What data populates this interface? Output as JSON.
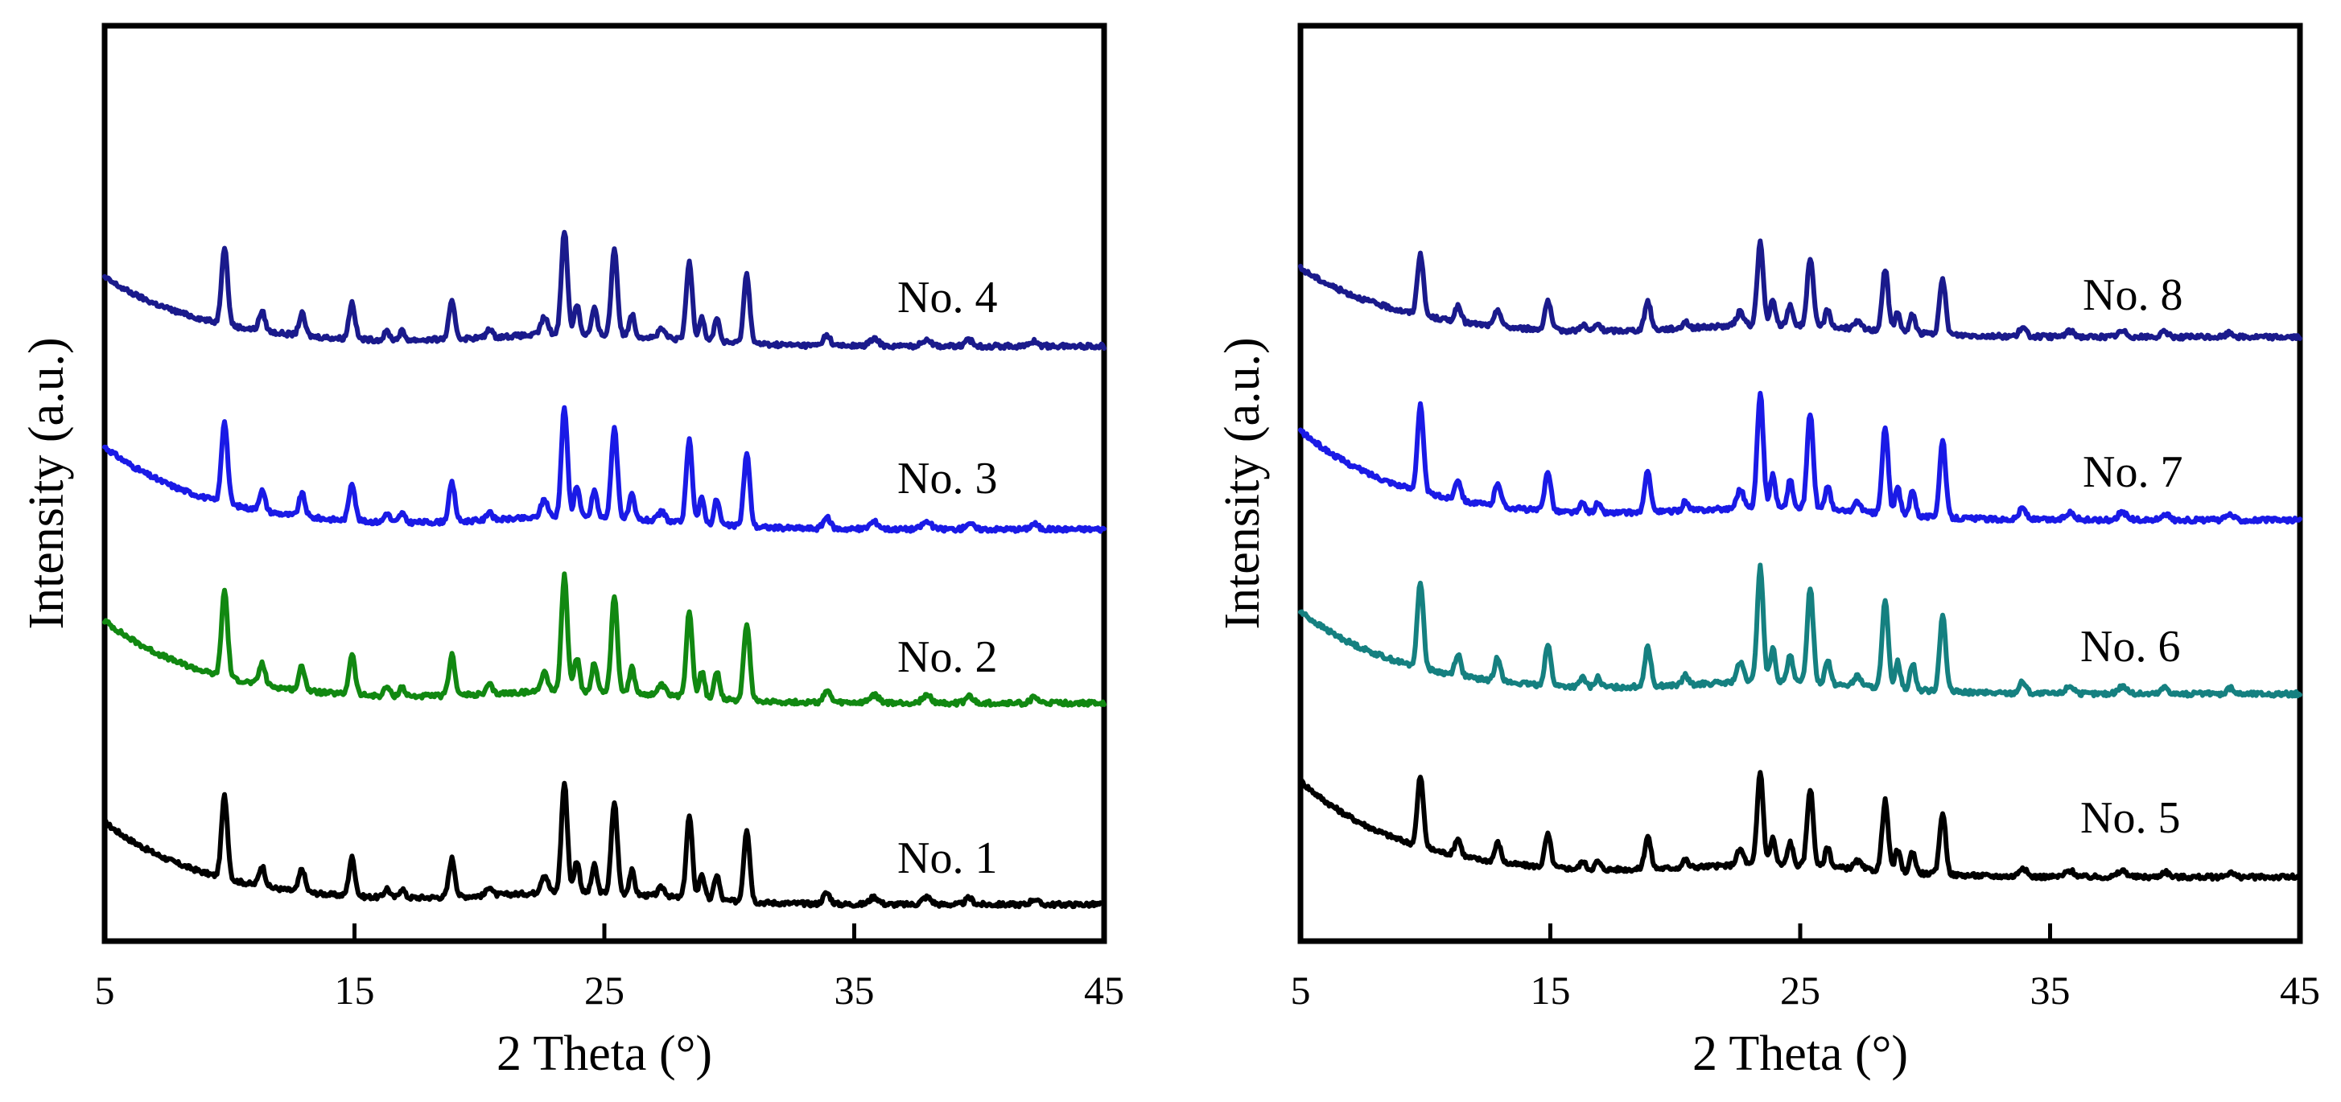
{
  "chart_data": [
    {
      "type": "line",
      "xlabel": "2 Theta (°)",
      "ylabel": "Intensity (a.u.)",
      "xlim": [
        5,
        45
      ],
      "xticks": [
        5,
        15,
        25,
        35,
        45
      ],
      "ylim": [
        0,
        100
      ],
      "grid": false,
      "legend": "inline labels",
      "series": [
        {
          "name": "No. 1",
          "label": "No. 1",
          "color": "#000000",
          "offset": 4,
          "tail": 1.2,
          "scale": 1.0,
          "jitter": 0.5
        },
        {
          "name": "No. 2",
          "label": "No. 2",
          "color": "#118811",
          "offset": 26,
          "tail": 1.2,
          "scale": 1.05,
          "jitter": 0.5
        },
        {
          "name": "No. 3",
          "label": "No. 3",
          "color": "#1a1ae6",
          "offset": 45,
          "tail": 1.2,
          "scale": 1.0,
          "jitter": 0.5
        },
        {
          "name": "No. 4",
          "label": "No. 4",
          "color": "#1a1a8c",
          "offset": 65,
          "tail": 1.0,
          "scale": 0.95,
          "jitter": 0.5
        }
      ]
    },
    {
      "type": "line",
      "xlabel": "2 Theta (°)",
      "ylabel": "Intensity (a.u.)",
      "xlim": [
        5,
        45
      ],
      "xticks": [
        5,
        15,
        25,
        35,
        45
      ],
      "ylim": [
        0,
        100
      ],
      "grid": false,
      "legend": "inline labels",
      "series": [
        {
          "name": "No. 5",
          "label": "No. 5",
          "color": "#000000",
          "offset": 7,
          "tail": 1.4,
          "scale": 0.85,
          "jitter": 0.5
        },
        {
          "name": "No. 6",
          "label": "No. 6",
          "color": "#158080",
          "offset": 27,
          "tail": 1.2,
          "scale": 1.05,
          "jitter": 0.5
        },
        {
          "name": "No. 7",
          "label": "No. 7",
          "color": "#1a1ae6",
          "offset": 46,
          "tail": 1.3,
          "scale": 1.05,
          "jitter": 0.5
        },
        {
          "name": "No. 8",
          "label": "No. 8",
          "color": "#1a1a8c",
          "offset": 66,
          "tail": 1.0,
          "scale": 0.75,
          "jitter": 0.5
        }
      ]
    }
  ],
  "peak_positions_2theta": [
    9.8,
    11.3,
    12.9,
    14.9,
    16.3,
    16.9,
    18.9,
    20.4,
    22.6,
    23.4,
    23.9,
    24.6,
    25.4,
    26.1,
    27.3,
    28.4,
    28.9,
    29.5,
    30.7,
    33.9,
    35.8,
    37.9,
    39.6,
    42.2
  ]
}
